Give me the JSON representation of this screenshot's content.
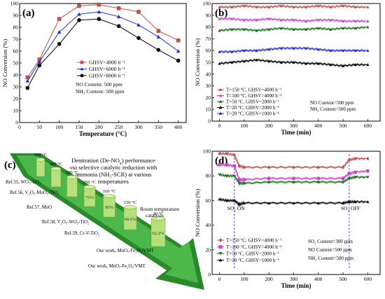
{
  "chart_data": [
    {
      "panel": "(a)",
      "type": "line",
      "xlabel": "Temperature (°C)",
      "ylabel": "NO Conversion (%)",
      "xlim": [
        0,
        420
      ],
      "ylim": [
        0,
        100
      ],
      "xticks": [
        0,
        50,
        100,
        150,
        200,
        250,
        300,
        350,
        400
      ],
      "yticks": [
        0,
        10,
        20,
        30,
        40,
        50,
        60,
        70,
        80,
        90,
        100
      ],
      "grid": false,
      "legend_position": "center-right",
      "series": [
        {
          "name": "GHSV=4000 h⁻¹",
          "color": "#c0504d",
          "marker": "square",
          "x": [
            20,
            50,
            100,
            150,
            200,
            250,
            300,
            350,
            400
          ],
          "y": [
            38,
            53,
            87,
            98,
            99,
            96,
            93,
            77,
            69
          ]
        },
        {
          "name": "GHSV=6000 h⁻¹",
          "color": "#2030e0",
          "marker": "triangle",
          "x": [
            20,
            50,
            100,
            150,
            200,
            250,
            300,
            350,
            400
          ],
          "y": [
            35,
            51,
            76,
            91,
            93,
            89,
            82,
            72,
            60
          ]
        },
        {
          "name": "GHSV=8000 h⁻¹",
          "color": "#000000",
          "marker": "circle",
          "x": [
            20,
            50,
            100,
            150,
            200,
            250,
            300,
            350,
            400
          ],
          "y": [
            29,
            48,
            66,
            86,
            87,
            81,
            71,
            61,
            52
          ]
        }
      ],
      "annotations": [
        "NO Content: 500 ppm",
        "NH₃ Content: 500 ppm"
      ]
    },
    {
      "panel": "(b)",
      "type": "line",
      "xlabel": "Time (min)",
      "ylabel": "NO Conversion (%)",
      "xlim": [
        -30,
        650
      ],
      "ylim": [
        0,
        100
      ],
      "xticks": [
        0,
        100,
        200,
        300,
        400,
        500,
        600
      ],
      "yticks": [
        0,
        10,
        20,
        30,
        40,
        50,
        60,
        70,
        80,
        90,
        100
      ],
      "grid": false,
      "legend_position": "lower-left",
      "series": [
        {
          "name": "T=150 °C, GHSV=4000 h⁻¹",
          "color": "#c0504d",
          "marker": "triangle",
          "x": [
            0,
            50,
            100,
            150,
            200,
            250,
            300,
            350,
            400,
            450,
            500,
            550,
            600
          ],
          "y": [
            97,
            97,
            98,
            97,
            97,
            98,
            97,
            97,
            98,
            97,
            98,
            97,
            97
          ]
        },
        {
          "name": "T=100 °C, GHSV=4000 h⁻¹",
          "color": "#d040d0",
          "marker": "triangle",
          "x": [
            0,
            50,
            100,
            150,
            200,
            250,
            300,
            350,
            400,
            450,
            500,
            550,
            600
          ],
          "y": [
            87,
            87,
            86,
            86,
            87,
            86,
            86,
            85,
            86,
            86,
            85,
            85,
            85
          ]
        },
        {
          "name": "T=50 °C, GHSV=2000 h⁻¹",
          "color": "#1a6e1a",
          "marker": "triangle",
          "x": [
            0,
            50,
            100,
            150,
            200,
            250,
            300,
            350,
            400,
            450,
            500,
            550,
            600
          ],
          "y": [
            77,
            78,
            78,
            77,
            78,
            79,
            78,
            78,
            79,
            78,
            79,
            79,
            80
          ]
        },
        {
          "name": "T=20 °C, GHSV=2000 h⁻¹",
          "color": "#000000",
          "marker": "triangle",
          "x": [
            0,
            50,
            100,
            150,
            200,
            250,
            300,
            350,
            400,
            450,
            500,
            550,
            600
          ],
          "y": [
            49,
            50,
            51,
            52,
            51,
            50,
            50,
            49,
            49,
            48,
            47,
            48,
            48
          ]
        },
        {
          "name": "T=20 °C, GHSV=1000 h⁻¹",
          "color": "#2030e0",
          "marker": "triangle",
          "x": [
            0,
            50,
            100,
            150,
            200,
            250,
            300,
            350,
            400,
            450,
            500,
            550,
            600
          ],
          "y": [
            59,
            59,
            60,
            60,
            61,
            62,
            62,
            62,
            61,
            60,
            60,
            60,
            60
          ]
        }
      ],
      "annotations": [
        "NO Content=500 ppm",
        "NH₃ Content=500 ppm"
      ]
    },
    {
      "panel": "(c)",
      "type": "table",
      "title_lines": [
        "Denitration (De-NO",
        "x",
        ") performance",
        "via",
        " selective catalytic reduction with",
        "ammonia (NH₃-SCR) at various",
        "temperatures"
      ],
      "rows": [
        {
          "label": "Ref.55, WO₃-TiO₂",
          "temperature": "500 °C",
          "value": ""
        },
        {
          "label": "Ref.56, V₂O₅-MoO₃-TiO₂",
          "temperature": "400 °C",
          "value": ""
        },
        {
          "label": "Ref.57, MnO",
          "temperature": "300 °C",
          "value": ""
        },
        {
          "label": "",
          "temperature": "250 °C",
          "value": "75%"
        },
        {
          "label": "Ref.58, V₂O₅-WO₃-TiO₂",
          "temperature": "160 °C",
          "value": "90%"
        },
        {
          "label": "Ref.59, Cr-V-TiO₂",
          "temperature": "150 °C",
          "value": "98.6%"
        },
        {
          "label": "Our work, MnOₓ-Fe₂O₃/VMT",
          "temperature": "20 °C",
          "value": "62.2%"
        },
        {
          "label": "Our work, MnOₓ-Fe₂O₃/VMT",
          "temperature": "",
          "value": ""
        }
      ],
      "annotations": [
        "Room temperature",
        "catalysis"
      ]
    },
    {
      "panel": "(d)",
      "type": "line",
      "xlabel": "Time (min)",
      "ylabel": "NO Conversion (%)",
      "xlim": [
        -30,
        650
      ],
      "ylim": [
        0,
        100
      ],
      "xticks": [
        0,
        100,
        200,
        300,
        400,
        500,
        600
      ],
      "yticks": [
        0,
        20,
        40,
        60,
        80,
        100
      ],
      "grid": false,
      "legend_position": "lower-left",
      "series": [
        {
          "name": "T=150 °C, GHSV=4000 h⁻¹",
          "color": "#c0504d",
          "marker": "diamond",
          "x": [
            0,
            30,
            60,
            80,
            100,
            200,
            300,
            400,
            500,
            525,
            550,
            600
          ],
          "y": [
            98,
            98,
            97,
            88,
            87,
            87,
            87,
            87,
            87,
            93,
            94,
            94
          ]
        },
        {
          "name": "T=100 °C, GHSV=4000 h⁻¹",
          "color": "#d040d0",
          "marker": "square",
          "x": [
            0,
            30,
            60,
            80,
            100,
            200,
            300,
            400,
            500,
            525,
            550,
            600
          ],
          "y": [
            89,
            89,
            88,
            77,
            77,
            78,
            78,
            78,
            78,
            82,
            83,
            84
          ]
        },
        {
          "name": "T=50 °C, GHSV=2000 h⁻¹",
          "color": "#1a6e1a",
          "marker": "triangle-down",
          "x": [
            0,
            30,
            60,
            80,
            100,
            200,
            300,
            400,
            500,
            525,
            550,
            600
          ],
          "y": [
            81,
            80,
            80,
            74,
            74,
            75,
            75,
            75,
            75,
            78,
            79,
            79
          ]
        },
        {
          "name": "T=20 °C, GHSV=1000 h⁻¹",
          "color": "#000000",
          "marker": "triangle",
          "x": [
            0,
            30,
            60,
            80,
            100,
            200,
            300,
            400,
            500,
            525,
            550,
            600
          ],
          "y": [
            61,
            60,
            60,
            57,
            58,
            58,
            58,
            58,
            58,
            59,
            59,
            59
          ]
        }
      ],
      "annotations": [
        "SO₂ ON",
        "SO₂ OFF",
        "SO₂ Content=300 ppm",
        "NO Content=500 ppm",
        "NH₃ Content=500 ppm"
      ],
      "events_x": [
        60,
        525
      ]
    }
  ]
}
